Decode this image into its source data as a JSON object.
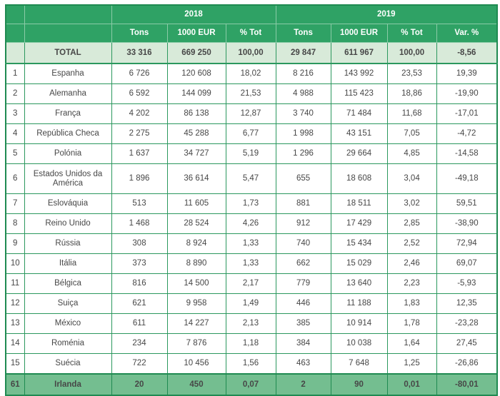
{
  "table": {
    "title_semantic": "export-statistics-by-country",
    "colors": {
      "header_bg": "#2FA265",
      "header_text": "#FFFFFF",
      "header_divider": "#8BCBA7",
      "grid_border": "#2B985E",
      "outer_border": "#1F8A51",
      "total_row_bg": "#D8EAD9",
      "highlight_row_bg": "#74BE90",
      "body_text": "#474747",
      "page_bg": "#FFFFFF"
    },
    "header": {
      "year_groups": [
        {
          "label": "",
          "colspan": 1
        },
        {
          "label": "",
          "colspan": 1
        },
        {
          "label": "2018",
          "colspan": 3
        },
        {
          "label": "2019",
          "colspan": 4
        }
      ],
      "columns": [
        "",
        "",
        "Tons",
        "1000 EUR",
        "% Tot",
        "Tons",
        "1000 EUR",
        "% Tot",
        "Var. %"
      ]
    },
    "column_keys": [
      "tons-2018",
      "eur-2018",
      "pct-2018",
      "tons-2019",
      "eur-2019",
      "pct-2019",
      "var-pct"
    ],
    "total_row": {
      "rank": "",
      "country": "TOTAL",
      "values": [
        "33 316",
        "669 250",
        "100,00",
        "29 847",
        "611 967",
        "100,00",
        "-8,56"
      ]
    },
    "rows": [
      {
        "rank": "1",
        "country": "Espanha",
        "values": [
          "6 726",
          "120 608",
          "18,02",
          "8 216",
          "143 992",
          "23,53",
          "19,39"
        ]
      },
      {
        "rank": "2",
        "country": "Alemanha",
        "values": [
          "6 592",
          "144 099",
          "21,53",
          "4 988",
          "115 423",
          "18,86",
          "-19,90"
        ]
      },
      {
        "rank": "3",
        "country": "França",
        "values": [
          "4 202",
          "86 138",
          "12,87",
          "3 740",
          "71 484",
          "11,68",
          "-17,01"
        ]
      },
      {
        "rank": "4",
        "country": "República Checa",
        "values": [
          "2 275",
          "45 288",
          "6,77",
          "1 998",
          "43 151",
          "7,05",
          "-4,72"
        ]
      },
      {
        "rank": "5",
        "country": "Polónia",
        "values": [
          "1 637",
          "34 727",
          "5,19",
          "1 296",
          "29 664",
          "4,85",
          "-14,58"
        ]
      },
      {
        "rank": "6",
        "country": "Estados Unidos da América",
        "values": [
          "1 896",
          "36 614",
          "5,47",
          "655",
          "18 608",
          "3,04",
          "-49,18"
        ],
        "tall": true
      },
      {
        "rank": "7",
        "country": "Eslováquia",
        "values": [
          "513",
          "11 605",
          "1,73",
          "881",
          "18 511",
          "3,02",
          "59,51"
        ]
      },
      {
        "rank": "8",
        "country": "Reino Unido",
        "values": [
          "1 468",
          "28 524",
          "4,26",
          "912",
          "17 429",
          "2,85",
          "-38,90"
        ]
      },
      {
        "rank": "9",
        "country": "Rússia",
        "values": [
          "308",
          "8 924",
          "1,33",
          "740",
          "15 434",
          "2,52",
          "72,94"
        ]
      },
      {
        "rank": "10",
        "country": "Itália",
        "values": [
          "373",
          "8 890",
          "1,33",
          "662",
          "15 029",
          "2,46",
          "69,07"
        ]
      },
      {
        "rank": "11",
        "country": "Bélgica",
        "values": [
          "816",
          "14 500",
          "2,17",
          "779",
          "13 640",
          "2,23",
          "-5,93"
        ]
      },
      {
        "rank": "12",
        "country": "Suiça",
        "values": [
          "621",
          "9 958",
          "1,49",
          "446",
          "11 188",
          "1,83",
          "12,35"
        ]
      },
      {
        "rank": "13",
        "country": "México",
        "values": [
          "611",
          "14 227",
          "2,13",
          "385",
          "10 914",
          "1,78",
          "-23,28"
        ]
      },
      {
        "rank": "14",
        "country": "Roménia",
        "values": [
          "234",
          "7 876",
          "1,18",
          "384",
          "10 038",
          "1,64",
          "27,45"
        ]
      },
      {
        "rank": "15",
        "country": "Suécia",
        "values": [
          "722",
          "10 456",
          "1,56",
          "463",
          "7 648",
          "1,25",
          "-26,86"
        ]
      },
      {
        "rank": "61",
        "country": "Irlanda",
        "values": [
          "20",
          "450",
          "0,07",
          "2",
          "90",
          "0,01",
          "-80,01"
        ],
        "highlight": true
      }
    ]
  }
}
